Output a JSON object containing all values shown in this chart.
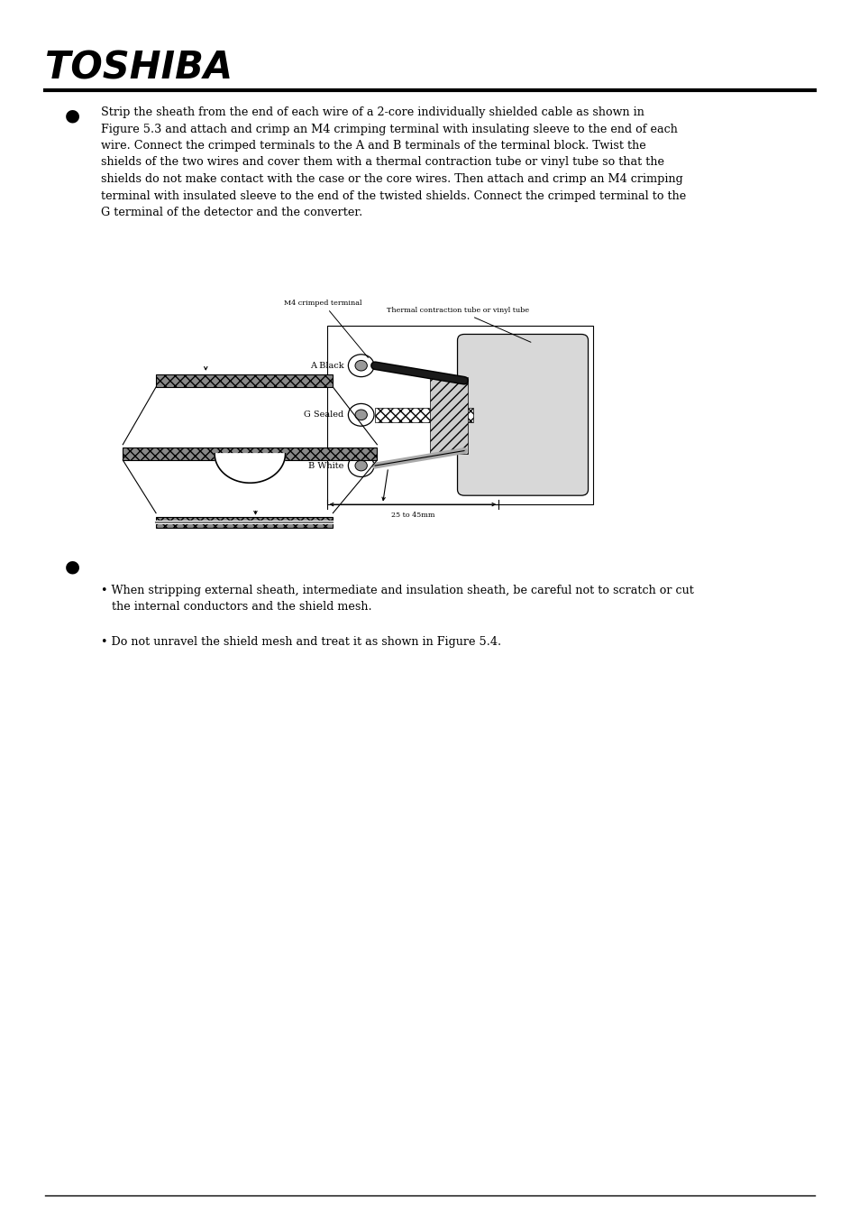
{
  "bg_color": "#ffffff",
  "title": "TOSHIBA",
  "body_text1_lines": [
    "Strip the sheath from the end of each wire of a 2-core individually shielded cable as shown in",
    "Figure 5.3 and attach and crimp an M4 crimping terminal with insulating sleeve to the end of each",
    "wire. Connect the crimped terminals to the A and B terminals of the terminal block. Twist the",
    "shields of the two wires and cover them with a thermal contraction tube or vinyl tube so that the",
    "shields do not make contact with the case or the core wires. Then attach and crimp an M4 crimping",
    "terminal with insulated sleeve to the end of the twisted shields. Connect the crimped terminal to the",
    "G terminal of the detector and the converter."
  ],
  "bullet_text1_line1": "• When stripping external sheath, intermediate and insulation sheath, be careful not to scratch or cut",
  "bullet_text1_line2": "   the internal conductors and the shield mesh.",
  "bullet_text2": "• Do not unravel the shield mesh and treat it as shown in Figure 5.4."
}
